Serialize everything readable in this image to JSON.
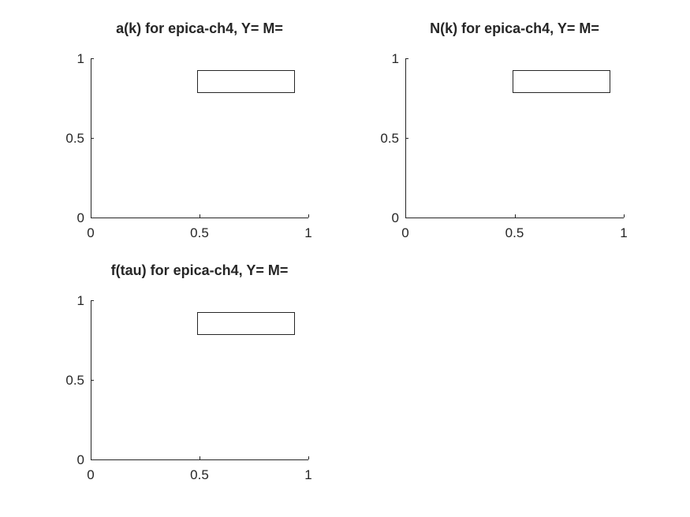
{
  "chart_data": [
    {
      "type": "line",
      "title": "a(k) for epica-ch4, Y= M=",
      "xlabel": "",
      "ylabel": "",
      "xlim": [
        0,
        1
      ],
      "ylim": [
        0,
        1
      ],
      "xticks": [
        0,
        0.5,
        1
      ],
      "yticks": [
        0,
        0.5,
        1
      ],
      "xtick_labels": [
        "0",
        "0.5",
        "1"
      ],
      "ytick_labels": [
        "0",
        "0.5",
        "1"
      ],
      "series": [],
      "legend": "top-right",
      "grid": false
    },
    {
      "type": "line",
      "title": "N(k) for epica-ch4, Y= M=",
      "xlabel": "",
      "ylabel": "",
      "xlim": [
        0,
        1
      ],
      "ylim": [
        0,
        1
      ],
      "xticks": [
        0,
        0.5,
        1
      ],
      "yticks": [
        0,
        0.5,
        1
      ],
      "xtick_labels": [
        "0",
        "0.5",
        "1"
      ],
      "ytick_labels": [
        "0",
        "0.5",
        "1"
      ],
      "series": [],
      "legend": "top-right",
      "grid": false
    },
    {
      "type": "line",
      "title": "f(tau) for epica-ch4, Y= M=",
      "xlabel": "",
      "ylabel": "",
      "xlim": [
        0,
        1
      ],
      "ylim": [
        0,
        1
      ],
      "xticks": [
        0,
        0.5,
        1
      ],
      "yticks": [
        0,
        0.5,
        1
      ],
      "xtick_labels": [
        "0",
        "0.5",
        "1"
      ],
      "ytick_labels": [
        "0",
        "0.5",
        "1"
      ],
      "series": [],
      "legend": "top-right",
      "grid": false
    }
  ],
  "colors": {
    "axis": "#262626",
    "background": "#ffffff"
  }
}
